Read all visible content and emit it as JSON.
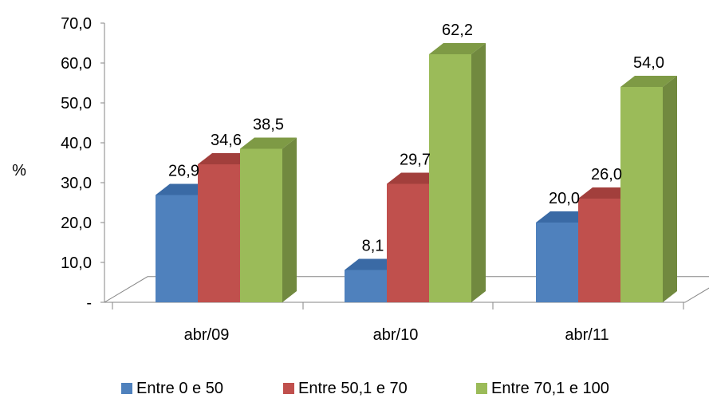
{
  "chart_data": {
    "type": "bar",
    "title": "",
    "xlabel": "",
    "ylabel": "%",
    "ylim": [
      0,
      70
    ],
    "yticks": [
      "-",
      "10,0",
      "20,0",
      "30,0",
      "40,0",
      "50,0",
      "60,0",
      "70,0"
    ],
    "categories": [
      "abr/09",
      "abr/10",
      "abr/11"
    ],
    "series": [
      {
        "name": "Entre 0 e 50",
        "color": "#4F81BD",
        "side": "#385D8A",
        "top": "#3A6AA5",
        "values": [
          26.9,
          8.1,
          20.0
        ],
        "labels": [
          "26,9",
          "8,1",
          "20,0"
        ]
      },
      {
        "name": "Entre 50,1 e 70",
        "color": "#C0504D",
        "side": "#8C3836",
        "top": "#A23F3C",
        "values": [
          34.6,
          29.7,
          26.0
        ],
        "labels": [
          "34,6",
          "29,7",
          "26,0"
        ]
      },
      {
        "name": "Entre 70,1 e 100",
        "color": "#9BBB59",
        "side": "#71893F",
        "top": "#7E9A45",
        "values": [
          38.5,
          62.2,
          54.0
        ],
        "labels": [
          "38,5",
          "62,2",
          "54,0"
        ]
      }
    ],
    "grid": false,
    "legend_position": "bottom",
    "style": "3d-clustered-column"
  }
}
